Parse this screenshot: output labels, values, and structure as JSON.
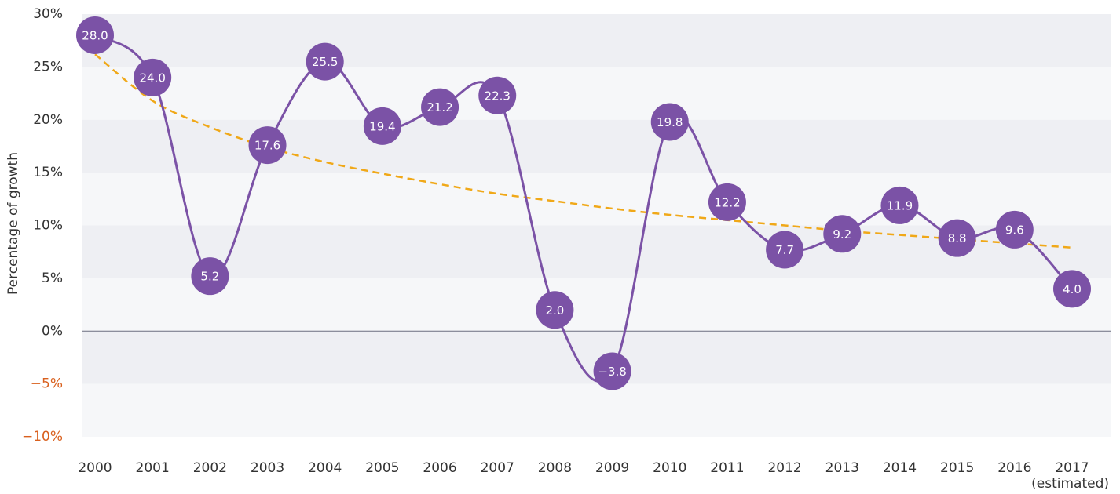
{
  "chart_data": {
    "type": "line",
    "y_axis_label": "Percentage of growth",
    "categories": [
      "2000",
      "2001",
      "2002",
      "2003",
      "2004",
      "2005",
      "2006",
      "2007",
      "2008",
      "2009",
      "2010",
      "2011",
      "2012",
      "2013",
      "2014",
      "2015",
      "2016",
      "2017"
    ],
    "category_note": "(estimated)",
    "series": [
      {
        "color": "#7b52a6",
        "values": [
          28.0,
          24.0,
          5.2,
          17.6,
          25.5,
          19.4,
          21.2,
          22.3,
          2.0,
          -3.8,
          19.8,
          12.2,
          7.7,
          9.2,
          11.9,
          8.8,
          9.6,
          4.0
        ],
        "value_labels": [
          "28.0",
          "24.0",
          "5.2",
          "17.6",
          "25.5",
          "19.4",
          "21.2",
          "22.3",
          "2.0",
          "−3.8",
          "19.8",
          "12.2",
          "7.7",
          "9.2",
          "11.9",
          "8.8",
          "9.6",
          "4.0"
        ]
      }
    ],
    "trend": {
      "color": "#f0a818",
      "dashed": true,
      "values": [
        26.2,
        21.8,
        19.3,
        17.4,
        16.0,
        14.9,
        13.9,
        13.0,
        12.3,
        11.6,
        11.0,
        10.5,
        10.0,
        9.5,
        9.1,
        8.7,
        8.3,
        7.9
      ]
    },
    "ylim": [
      -10,
      30
    ],
    "yticks": [
      {
        "value": 30,
        "label": "30%"
      },
      {
        "value": 25,
        "label": "25%"
      },
      {
        "value": 20,
        "label": "20%"
      },
      {
        "value": 15,
        "label": "15%"
      },
      {
        "value": 10,
        "label": "10%"
      },
      {
        "value": 5,
        "label": "5%"
      },
      {
        "value": 0,
        "label": "0%"
      },
      {
        "value": -5,
        "label": "−5%"
      },
      {
        "value": -10,
        "label": "−10%"
      }
    ],
    "grid_bands": [
      "#eeeff3",
      "#f6f7f9"
    ],
    "negative_tick_color": "#d9601e",
    "zero_line": true
  }
}
